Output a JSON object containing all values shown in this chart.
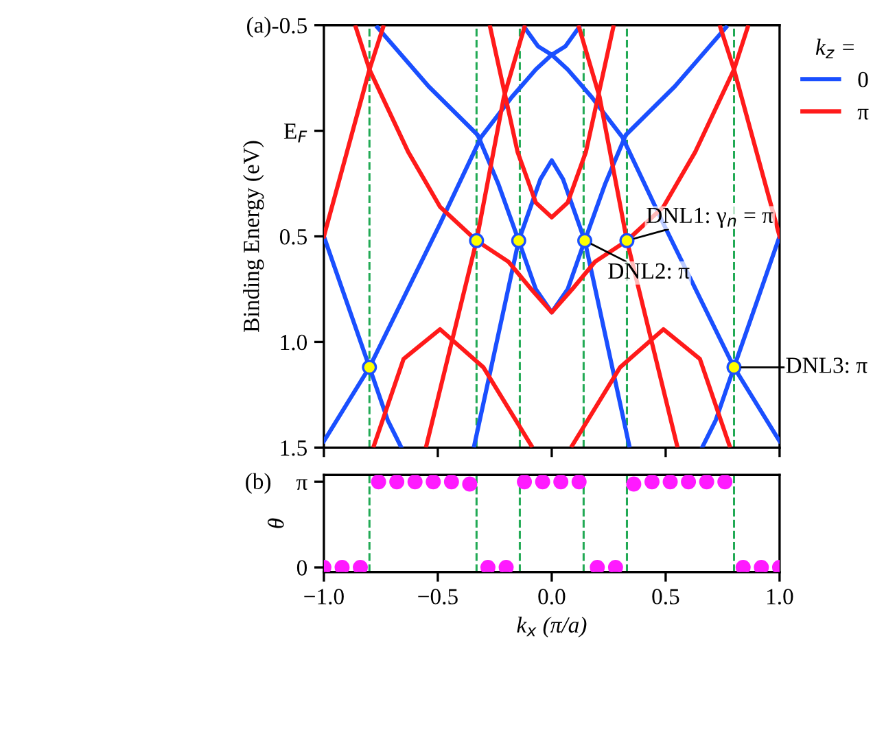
{
  "chart_data": [
    {
      "type": "line",
      "ylabel": "Binding Energy (eV)",
      "legend_title": "k$_{z}$ =",
      "legend": "top right",
      "xlim": [
        -1,
        1
      ],
      "ylim": [
        1.5,
        -0.5
      ],
      "xticks": [
        -1,
        -0.5,
        0,
        0.5,
        1
      ],
      "yticks": [
        -0.5,
        {
          "value": 0,
          "label": "E$_{F}$"
        },
        0.5,
        {
          "value": 1,
          "label": "1.0"
        },
        1.5
      ],
      "tick_labels": "y",
      "line_style": "solid",
      "series": [
        {
          "name": "0",
          "color": "#1a4fff",
          "x": [
            -1,
            -0.8,
            -0.49,
            -0.31,
            -0.175,
            -0.07,
            0,
            0.07,
            0.175,
            0.31,
            0.49,
            0.8,
            1
          ],
          "values": [
            1.47,
            1.12,
            0.44,
            0.03,
            -0.16,
            -0.29,
            -0.36,
            -0.29,
            -0.16,
            0.03,
            0.44,
            1.12,
            1.47
          ]
        },
        {
          "color": "#1a4fff",
          "x": [
            -1,
            -0.9,
            -0.8,
            -0.72,
            -0.66
          ],
          "values": [
            0.5,
            0.81,
            1.12,
            1.37,
            1.5
          ]
        },
        {
          "color": "#1a4fff",
          "x": [
            1,
            0.9,
            0.8,
            0.72,
            0.66
          ],
          "values": [
            0.5,
            0.81,
            1.12,
            1.37,
            1.5
          ]
        },
        {
          "color": "#1a4fff",
          "x": [
            -0.765,
            -0.54,
            -0.325,
            -0.235,
            -0.145,
            -0.07,
            0,
            0.07,
            0.145,
            0.235,
            0.325,
            0.54,
            0.765
          ],
          "values": [
            -0.49,
            -0.21,
            0.02,
            0.25,
            0.52,
            0.75,
            0.86,
            0.75,
            0.52,
            0.25,
            0.02,
            -0.21,
            -0.49
          ]
        },
        {
          "color": "#1a4fff",
          "x": [
            -0.34,
            -0.145,
            -0.05,
            0,
            0.05,
            0.145,
            0.34
          ],
          "values": [
            1.49,
            0.52,
            0.23,
            0.14,
            0.23,
            0.52,
            1.49
          ]
        },
        {
          "color": "#1a4fff",
          "x": [
            -0.12,
            -0.06,
            0,
            0.06,
            0.12
          ],
          "values": [
            -0.49,
            -0.4,
            -0.36,
            -0.4,
            -0.49
          ]
        },
        {
          "name": "π",
          "color": "#ff1a1a",
          "x": [
            -0.86,
            -0.8,
            -0.63,
            -0.49,
            -0.33,
            -0.19,
            -0.09,
            0,
            0.09,
            0.19,
            0.33,
            0.49,
            0.63,
            0.8,
            0.86
          ],
          "values": [
            -0.49,
            -0.29,
            0.1,
            0.36,
            0.52,
            0.62,
            0.75,
            0.86,
            0.75,
            0.62,
            0.52,
            0.36,
            0.1,
            -0.29,
            -0.49
          ]
        },
        {
          "color": "#ff1a1a",
          "x": [
            -1,
            -0.8,
            -0.74
          ],
          "values": [
            0.5,
            -0.29,
            -0.49
          ]
        },
        {
          "color": "#ff1a1a",
          "x": [
            1,
            0.8,
            0.74
          ],
          "values": [
            0.5,
            -0.29,
            -0.49
          ]
        },
        {
          "color": "#ff1a1a",
          "x": [
            -0.27,
            -0.15,
            -0.07,
            0,
            0.07,
            0.15,
            0.27
          ],
          "values": [
            -0.49,
            0.1,
            0.34,
            0.41,
            0.34,
            0.1,
            -0.49
          ]
        },
        {
          "color": "#ff1a1a",
          "x": [
            -0.12,
            -0.21,
            -0.33,
            -0.55
          ],
          "values": [
            -0.49,
            -0.16,
            0.52,
            1.49
          ]
        },
        {
          "color": "#ff1a1a",
          "x": [
            0.12,
            0.21,
            0.33,
            0.55
          ],
          "values": [
            -0.49,
            -0.16,
            0.52,
            1.49
          ]
        },
        {
          "color": "#ff1a1a",
          "x": [
            -0.78,
            -0.65,
            -0.49,
            -0.3,
            -0.09
          ],
          "values": [
            1.49,
            1.08,
            0.94,
            1.12,
            1.49
          ]
        },
        {
          "color": "#ff1a1a",
          "x": [
            0.09,
            0.3,
            0.49,
            0.65,
            0.78
          ],
          "values": [
            1.49,
            1.12,
            0.94,
            1.08,
            1.49
          ]
        },
        {
          "type": "scatter",
          "marker": "circle",
          "color": "#ffff00",
          "x": [
            -0.8,
            -0.33,
            -0.145,
            0.145,
            0.33,
            0.8
          ],
          "values": [
            1.12,
            0.52,
            0.52,
            0.52,
            0.52,
            1.12
          ]
        }
      ],
      "ref_lines": [
        {
          "axis": "x",
          "value": -0.8,
          "color": "#22aa55",
          "line_style": "dashed"
        },
        {
          "axis": "x",
          "value": -0.33,
          "color": "#22aa55",
          "line_style": "dashed"
        },
        {
          "axis": "x",
          "value": -0.14,
          "color": "#22aa55",
          "line_style": "dashed"
        },
        {
          "axis": "x",
          "value": 0.14,
          "color": "#22aa55",
          "line_style": "dashed"
        },
        {
          "axis": "x",
          "value": 0.33,
          "color": "#22aa55",
          "line_style": "dashed"
        },
        {
          "axis": "x",
          "value": 0.8,
          "color": "#22aa55",
          "line_style": "dashed"
        }
      ],
      "annotations": [
        "(a)",
        {
          "text": "DNL1: γ$_{n}$ = π",
          "x": 0.33,
          "y": 0.52
        },
        {
          "text": "DNL2: π",
          "x": 0.145,
          "y": 0.52
        },
        {
          "text": "DNL3: π",
          "x": 0.8,
          "y": 1.12
        }
      ]
    },
    {
      "type": "scatter",
      "ylabel": "θ",
      "xlabel": "k$_{x}$ (π/a)",
      "marker": "circle",
      "xlim": [
        -1,
        1
      ],
      "ylim": [
        -0.17,
        3.39
      ],
      "xticks": [
        {
          "value": -1,
          "label": "−1.0"
        },
        {
          "value": -0.5,
          "label": "−0.5"
        },
        {
          "value": 0,
          "label": "0.0"
        },
        {
          "value": 0.5,
          "label": "0.5"
        },
        {
          "value": 1,
          "label": "1.0"
        }
      ],
      "yticks": [
        0,
        {
          "value": 3.1416,
          "label": "π"
        }
      ],
      "series": [
        {
          "color": "#ff1aff",
          "x": [
            -1,
            -0.92,
            -0.84,
            -0.76,
            -0.68,
            -0.6,
            -0.52,
            -0.44,
            -0.36,
            -0.28,
            -0.2,
            -0.12,
            -0.04,
            0.04,
            0.12,
            0.2,
            0.28,
            0.36,
            0.44,
            0.52,
            0.6,
            0.68,
            0.76,
            0.84,
            0.92,
            1
          ],
          "values": [
            0,
            0,
            0,
            3.14,
            3.14,
            3.14,
            3.14,
            3.14,
            3.06,
            0,
            0,
            3.14,
            3.14,
            3.14,
            3.14,
            0,
            0,
            3.06,
            3.14,
            3.14,
            3.14,
            3.14,
            3.14,
            0,
            0,
            0
          ]
        }
      ],
      "ref_lines": [
        {
          "axis": "x",
          "value": -0.8,
          "color": "#22aa55",
          "line_style": "dashed"
        },
        {
          "axis": "x",
          "value": -0.33,
          "color": "#22aa55",
          "line_style": "dashed"
        },
        {
          "axis": "x",
          "value": -0.14,
          "color": "#22aa55",
          "line_style": "dashed"
        },
        {
          "axis": "x",
          "value": 0.14,
          "color": "#22aa55",
          "line_style": "dashed"
        },
        {
          "axis": "x",
          "value": 0.33,
          "color": "#22aa55",
          "line_style": "dashed"
        },
        {
          "axis": "x",
          "value": 0.8,
          "color": "#22aa55",
          "line_style": "dashed"
        }
      ],
      "annotations": [
        "(b)"
      ]
    }
  ]
}
